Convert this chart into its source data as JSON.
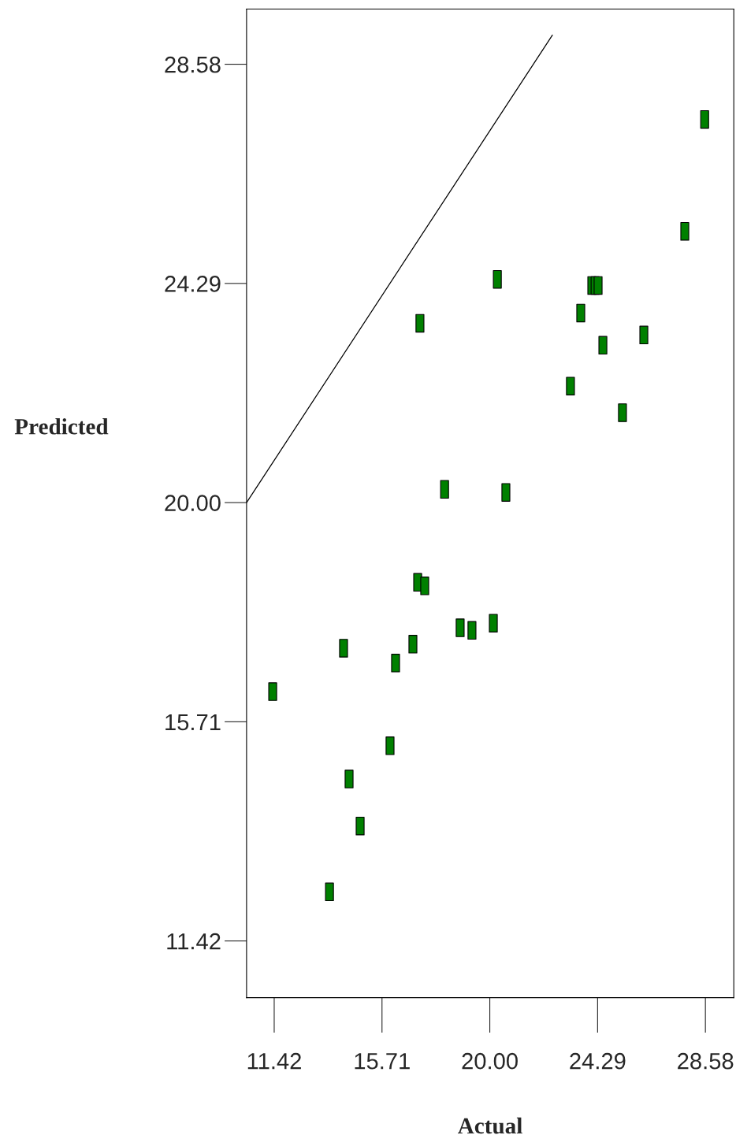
{
  "chart_data": {
    "type": "scatter",
    "xlabel": "Actual",
    "ylabel": "Predicted",
    "xlim": [
      10.32,
      29.71
    ],
    "ylim": [
      10.31,
      29.66
    ],
    "xticks": [
      11.42,
      15.71,
      {
        "value": 20,
        "label": "20.00"
      },
      24.29,
      28.58
    ],
    "yticks": [
      11.42,
      15.71,
      {
        "value": 20,
        "label": "20.00"
      },
      24.29,
      28.58
    ],
    "grid": false,
    "marker": "square",
    "series": [
      {
        "color": "#008000",
        "x": [
          11.36,
          13.62,
          14.18,
          14.4,
          14.84,
          16.03,
          16.25,
          16.94,
          17.13,
          17.41,
          17.22,
          18.2,
          18.82,
          19.29,
          20.14,
          20.3,
          20.64,
          23.21,
          23.62,
          24.06,
          24.19,
          24.31,
          24.5,
          25.28,
          26.13,
          27.76,
          28.55
        ],
        "values": [
          16.3,
          12.38,
          17.15,
          14.59,
          13.67,
          15.24,
          16.86,
          17.23,
          18.44,
          18.37,
          23.51,
          20.26,
          17.55,
          17.5,
          17.64,
          24.37,
          20.2,
          22.28,
          23.71,
          24.25,
          24.25,
          24.25,
          23.08,
          21.76,
          23.28,
          25.31,
          27.5
        ]
      },
      {
        "type": "line",
        "color": "#000000",
        "marker": "none",
        "x": [
          10.32,
          22.49
        ],
        "values": [
          20.0,
          29.15
        ]
      }
    ]
  }
}
